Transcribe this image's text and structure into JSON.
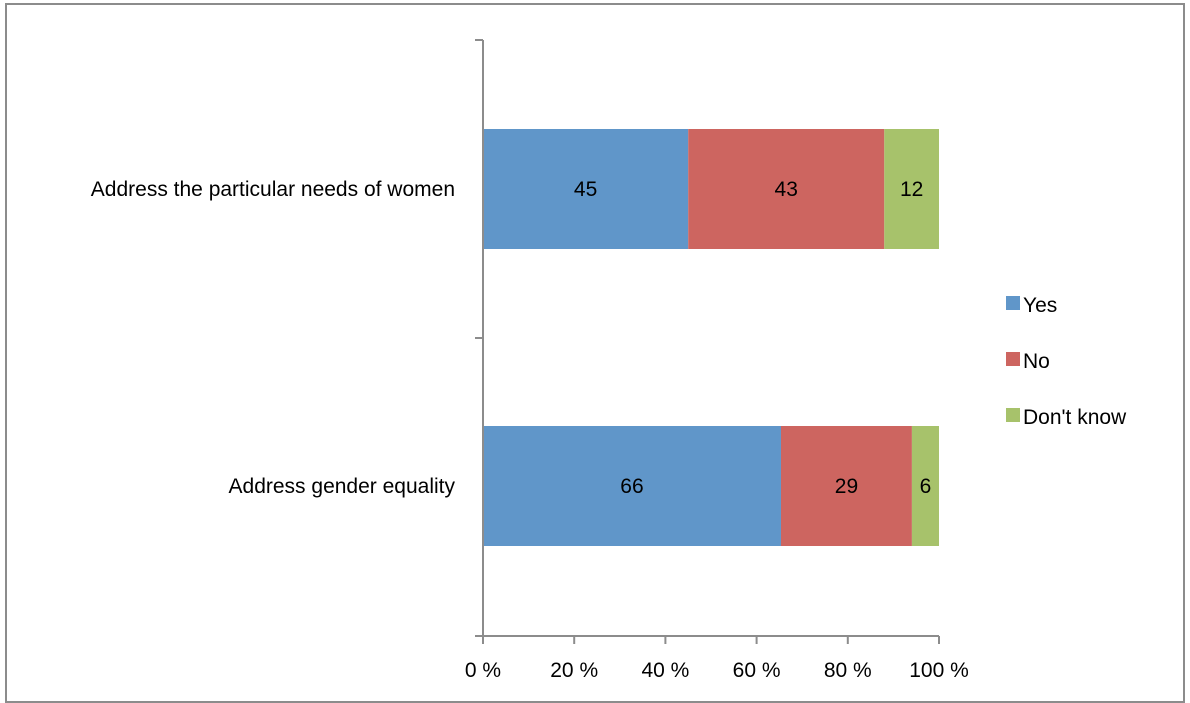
{
  "chart_data": {
    "type": "bar",
    "orientation": "horizontal",
    "stacked": true,
    "percent_stacked": true,
    "categories": [
      "Address the particular needs of women",
      "Address gender equality"
    ],
    "series": [
      {
        "name": "Yes",
        "values": [
          45,
          66
        ],
        "color": "#6096c9"
      },
      {
        "name": "No",
        "values": [
          43,
          29
        ],
        "color": "#cd6560"
      },
      {
        "name": "Don't know",
        "values": [
          12,
          6
        ],
        "color": "#a7c26b"
      }
    ],
    "x_ticks": [
      "0 %",
      "20 %",
      "40 %",
      "60 %",
      "80 %",
      "100 %"
    ],
    "xlim": [
      0,
      100
    ],
    "title": "",
    "xlabel": "",
    "ylabel": "",
    "grid": false,
    "legend_position": "right"
  }
}
